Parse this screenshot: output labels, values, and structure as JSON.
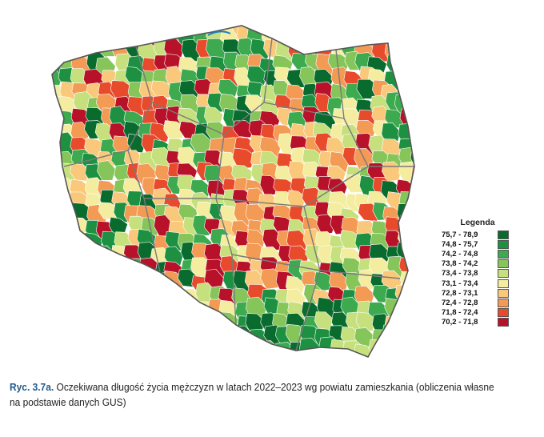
{
  "legend": {
    "title": "Legenda",
    "items": [
      {
        "label": "75,7  -  78,9",
        "color": "#0a6b2e"
      },
      {
        "label": "74,8  -  75,7",
        "color": "#1d9141"
      },
      {
        "label": "74,2  -  74,8",
        "color": "#3daa4f"
      },
      {
        "label": "73,8  -  74,2",
        "color": "#86c55a"
      },
      {
        "label": "73,4  -  73,8",
        "color": "#c5e07c"
      },
      {
        "label": "73,1  -  73,4",
        "color": "#f4eda0"
      },
      {
        "label": "72,8  -  73,1",
        "color": "#f9c87a"
      },
      {
        "label": "72,4  -  72,8",
        "color": "#f39a54"
      },
      {
        "label": "71,8  -  72,4",
        "color": "#e84a2c"
      },
      {
        "label": "70,2  -  71,8",
        "color": "#b8112a"
      }
    ]
  },
  "caption": {
    "label": "Ryc. 3.7a.",
    "text": " Oczekiwana długość życia mężczyzn w latach 2022–2023 wg powiatu zamieszkania (obliczenia własne na podstawie danych GUS)"
  }
}
